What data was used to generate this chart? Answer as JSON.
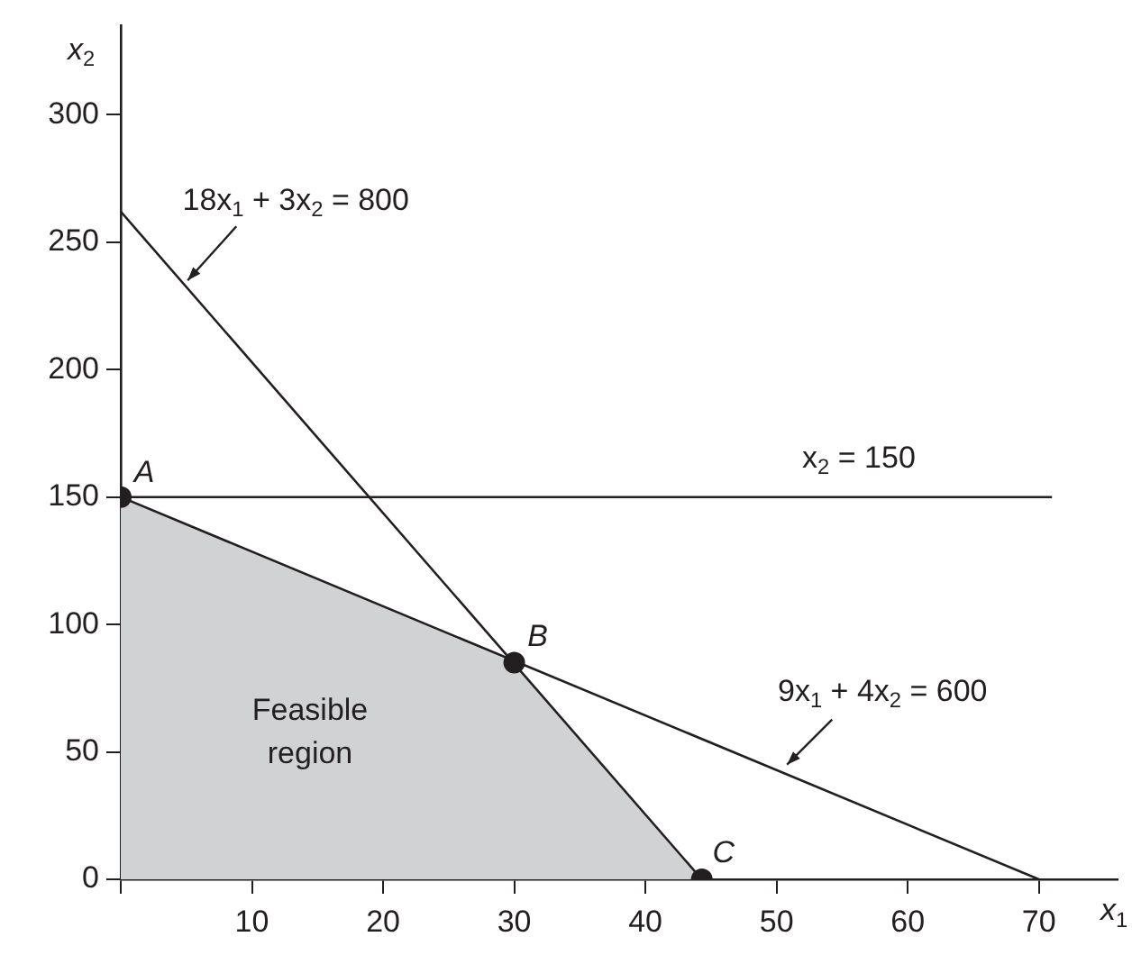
{
  "chart_data": {
    "type": "line",
    "xlabel": "x$_{1}$",
    "ylabel": "x$_{2}$",
    "xlim": [
      0,
      76
    ],
    "ylim": [
      0,
      335
    ],
    "xticks": [
      {
        "value": 0,
        "label": null
      },
      10,
      20,
      30,
      40,
      50,
      60,
      70
    ],
    "yticks": [
      0,
      50,
      100,
      150,
      200,
      250,
      300
    ],
    "grid": false,
    "series": [
      {
        "type": "area",
        "color": "#d1d2d4",
        "x": [
          0,
          30,
          44.3
        ],
        "values": [
          150,
          85,
          0
        ]
      },
      {
        "color": "#231f20",
        "x": [
          0,
          44.3
        ],
        "values": [
          262,
          0
        ]
      },
      {
        "color": "#231f20",
        "x": [
          0,
          70
        ],
        "values": [
          150,
          0
        ]
      },
      {
        "color": "#231f20",
        "x": [
          0,
          71
        ],
        "values": [
          150,
          150
        ]
      },
      {
        "type": "scatter",
        "color": "#231f20",
        "marker": "circle",
        "x": [
          0,
          30,
          44.3
        ],
        "values": [
          150,
          85,
          0
        ]
      }
    ],
    "annotations": [
      {
        "text": "A",
        "x": 0,
        "y": 150
      },
      {
        "text": "B",
        "x": 30,
        "y": 85
      },
      {
        "text": "C",
        "x": 44.3,
        "y": 0
      },
      {
        "text": "18x$_{1}$ + 3x$_{2}$ = 800",
        "x": 5.1,
        "y": 235
      },
      {
        "text": "x$_{2}$ = 150",
        "x": 56,
        "y": 150
      },
      {
        "text": "9x$_{1}$ + 4x$_{2}$ = 600",
        "x": 50.8,
        "y": 45
      },
      "Feasible region"
    ]
  }
}
